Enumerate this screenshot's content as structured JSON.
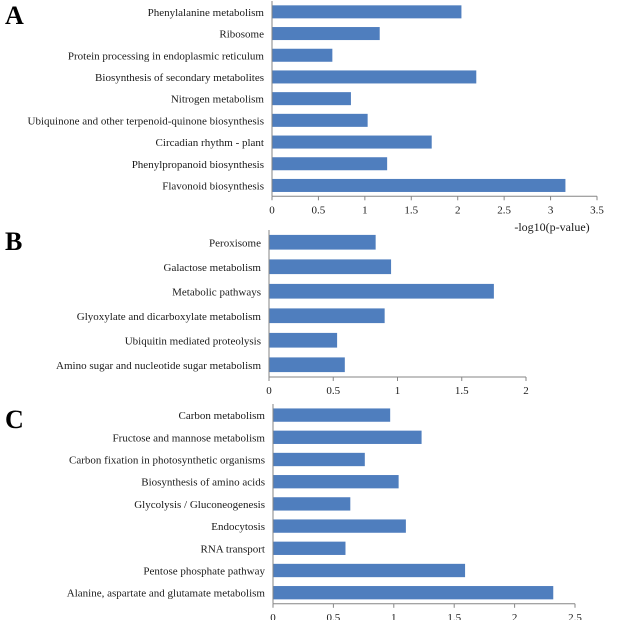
{
  "colors": {
    "bar": "#4F7EBE",
    "axis": "#868686",
    "text": "#1a1a1a"
  },
  "chart_data": [
    {
      "type": "bar",
      "orientation": "horizontal",
      "panel_label": "A",
      "categories": [
        "Phenylalanine metabolism",
        "Ribosome",
        "Protein processing in endoplasmic reticulum",
        "Biosynthesis of secondary metabolites",
        "Nitrogen metabolism",
        "Ubiquinone and other terpenoid-quinone biosynthesis",
        "Circadian rhythm - plant",
        "Phenylpropanoid biosynthesis",
        "Flavonoid biosynthesis"
      ],
      "values": [
        2.04,
        1.16,
        0.65,
        2.2,
        0.85,
        1.03,
        1.72,
        1.24,
        3.16
      ],
      "xlim": [
        0,
        3.5
      ],
      "ticks": [
        "0",
        "0.5",
        "1",
        "1.5",
        "2",
        "2.5",
        "3",
        "3.5"
      ],
      "xlabel": "-log10(p-value)"
    },
    {
      "type": "bar",
      "orientation": "horizontal",
      "panel_label": "B",
      "categories": [
        "Peroxisome",
        "Galactose metabolism",
        "Metabolic pathways",
        "Glyoxylate and dicarboxylate metabolism",
        "Ubiquitin mediated proteolysis",
        "Amino sugar and nucleotide sugar metabolism"
      ],
      "values": [
        0.83,
        0.95,
        1.75,
        0.9,
        0.53,
        0.59
      ],
      "xlim": [
        0,
        2
      ],
      "ticks": [
        "0",
        "0.5",
        "1",
        "1.5",
        "2"
      ],
      "xlabel": ""
    },
    {
      "type": "bar",
      "orientation": "horizontal",
      "panel_label": "C",
      "categories": [
        "Carbon metabolism",
        "Fructose and mannose metabolism",
        "Carbon fixation in photosynthetic organisms",
        "Biosynthesis of amino acids",
        "Glycolysis / Gluconeogenesis",
        "Endocytosis",
        "RNA transport",
        "Pentose phosphate pathway",
        "Alanine, aspartate and glutamate metabolism"
      ],
      "values": [
        0.97,
        1.23,
        0.76,
        1.04,
        0.64,
        1.1,
        0.6,
        1.59,
        2.32
      ],
      "xlim": [
        0,
        2.5
      ],
      "ticks": [
        "0",
        "0.5",
        "1",
        "1.5",
        "2",
        "2.5"
      ],
      "xlabel": ""
    }
  ]
}
